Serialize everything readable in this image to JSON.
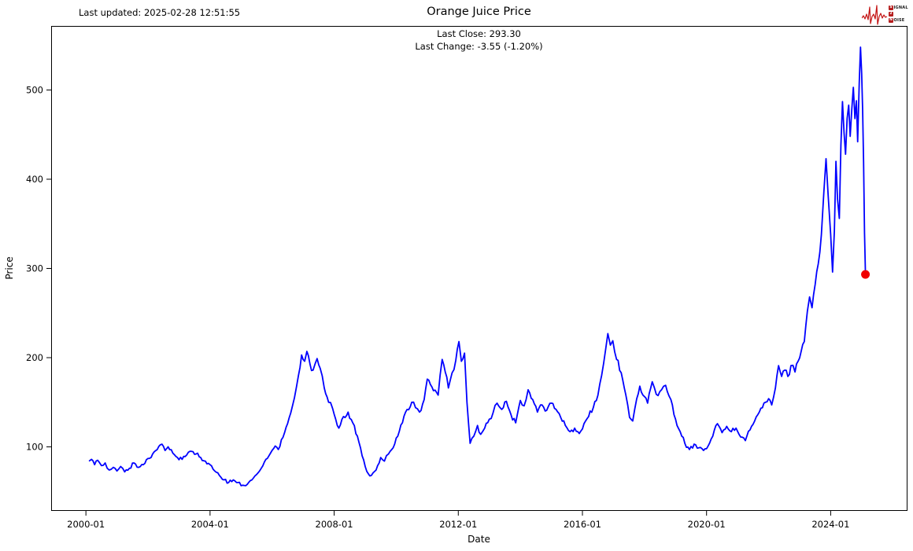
{
  "header": {
    "last_updated": "Last updated: 2025-02-28 12:51:55"
  },
  "logo": {
    "word1_badge": "S",
    "word1_rest": "IGNAL",
    "word2_badge": "2",
    "word3_badge": "N",
    "word3_rest": "OISE",
    "accent_color": "#c41414"
  },
  "chart_data": {
    "type": "line",
    "title": "Orange Juice Price",
    "annotations": [
      "Last Close: 293.30",
      "Last Change: -3.55 (-1.20%)"
    ],
    "last_close": 293.3,
    "last_change": "-3.55 (-1.20%)",
    "xlabel": "Date",
    "ylabel": "Price",
    "x_ticks": [
      {
        "label": "2000-01",
        "year": 2000.0
      },
      {
        "label": "2004-01",
        "year": 2004.0
      },
      {
        "label": "2008-01",
        "year": 2008.0
      },
      {
        "label": "2012-01",
        "year": 2012.0
      },
      {
        "label": "2016-01",
        "year": 2016.0
      },
      {
        "label": "2020-01",
        "year": 2020.0
      },
      {
        "label": "2024-01",
        "year": 2024.0
      }
    ],
    "y_ticks": [
      100,
      200,
      300,
      400,
      500
    ],
    "xlim": [
      1998.88,
      2026.45
    ],
    "ylim": [
      29.1,
      571.8
    ],
    "grid": false,
    "legend": "none",
    "line_color": "#0000ff",
    "marker_color": "#f00000",
    "series": [
      {
        "name": "Price",
        "points": [
          [
            2000.1,
            84
          ],
          [
            2000.18,
            86
          ],
          [
            2000.28,
            80
          ],
          [
            2000.38,
            85
          ],
          [
            2000.5,
            79
          ],
          [
            2000.62,
            82
          ],
          [
            2000.75,
            74
          ],
          [
            2000.88,
            77
          ],
          [
            2001.0,
            73
          ],
          [
            2001.12,
            78
          ],
          [
            2001.25,
            72
          ],
          [
            2001.4,
            76
          ],
          [
            2001.55,
            82
          ],
          [
            2001.7,
            77
          ],
          [
            2001.85,
            80
          ],
          [
            2002.0,
            87
          ],
          [
            2002.15,
            92
          ],
          [
            2002.3,
            97
          ],
          [
            2002.45,
            103
          ],
          [
            2002.55,
            96
          ],
          [
            2002.65,
            100
          ],
          [
            2002.8,
            93
          ],
          [
            2002.95,
            88
          ],
          [
            2003.1,
            86
          ],
          [
            2003.25,
            91
          ],
          [
            2003.4,
            95
          ],
          [
            2003.55,
            92
          ],
          [
            2003.7,
            88
          ],
          [
            2003.85,
            84
          ],
          [
            2004.0,
            80
          ],
          [
            2004.15,
            73
          ],
          [
            2004.3,
            68
          ],
          [
            2004.45,
            63
          ],
          [
            2004.6,
            60
          ],
          [
            2004.75,
            63
          ],
          [
            2004.9,
            60
          ],
          [
            2005.05,
            57
          ],
          [
            2005.2,
            58
          ],
          [
            2005.35,
            63
          ],
          [
            2005.5,
            69
          ],
          [
            2005.65,
            76
          ],
          [
            2005.8,
            86
          ],
          [
            2005.95,
            93
          ],
          [
            2006.1,
            101
          ],
          [
            2006.2,
            97
          ],
          [
            2006.3,
            108
          ],
          [
            2006.45,
            122
          ],
          [
            2006.6,
            138
          ],
          [
            2006.72,
            155
          ],
          [
            2006.85,
            180
          ],
          [
            2006.95,
            203
          ],
          [
            2007.05,
            196
          ],
          [
            2007.12,
            207
          ],
          [
            2007.22,
            193
          ],
          [
            2007.32,
            186
          ],
          [
            2007.45,
            199
          ],
          [
            2007.55,
            188
          ],
          [
            2007.68,
            166
          ],
          [
            2007.82,
            150
          ],
          [
            2007.95,
            143
          ],
          [
            2008.05,
            131
          ],
          [
            2008.15,
            121
          ],
          [
            2008.3,
            134
          ],
          [
            2008.45,
            139
          ],
          [
            2008.6,
            127
          ],
          [
            2008.75,
            112
          ],
          [
            2008.9,
            90
          ],
          [
            2009.0,
            78
          ],
          [
            2009.1,
            70
          ],
          [
            2009.2,
            68
          ],
          [
            2009.35,
            74
          ],
          [
            2009.5,
            88
          ],
          [
            2009.62,
            84
          ],
          [
            2009.75,
            92
          ],
          [
            2009.9,
            99
          ],
          [
            2010.05,
            112
          ],
          [
            2010.2,
            127
          ],
          [
            2010.35,
            142
          ],
          [
            2010.5,
            150
          ],
          [
            2010.62,
            144
          ],
          [
            2010.75,
            139
          ],
          [
            2010.9,
            153
          ],
          [
            2011.0,
            176
          ],
          [
            2011.1,
            170
          ],
          [
            2011.2,
            163
          ],
          [
            2011.35,
            158
          ],
          [
            2011.48,
            198
          ],
          [
            2011.58,
            184
          ],
          [
            2011.68,
            166
          ],
          [
            2011.8,
            183
          ],
          [
            2011.92,
            197
          ],
          [
            2012.02,
            218
          ],
          [
            2012.1,
            196
          ],
          [
            2012.2,
            205
          ],
          [
            2012.28,
            150
          ],
          [
            2012.38,
            104
          ],
          [
            2012.5,
            112
          ],
          [
            2012.62,
            124
          ],
          [
            2012.72,
            114
          ],
          [
            2012.85,
            121
          ],
          [
            2013.0,
            131
          ],
          [
            2013.12,
            138
          ],
          [
            2013.25,
            149
          ],
          [
            2013.4,
            142
          ],
          [
            2013.55,
            151
          ],
          [
            2013.7,
            136
          ],
          [
            2013.85,
            127
          ],
          [
            2014.0,
            152
          ],
          [
            2014.12,
            146
          ],
          [
            2014.25,
            164
          ],
          [
            2014.4,
            153
          ],
          [
            2014.55,
            139
          ],
          [
            2014.7,
            147
          ],
          [
            2014.85,
            141
          ],
          [
            2015.0,
            149
          ],
          [
            2015.15,
            142
          ],
          [
            2015.3,
            133
          ],
          [
            2015.45,
            124
          ],
          [
            2015.6,
            117
          ],
          [
            2015.75,
            121
          ],
          [
            2015.9,
            115
          ],
          [
            2016.05,
            126
          ],
          [
            2016.2,
            134
          ],
          [
            2016.35,
            144
          ],
          [
            2016.5,
            158
          ],
          [
            2016.62,
            180
          ],
          [
            2016.75,
            210
          ],
          [
            2016.82,
            227
          ],
          [
            2016.9,
            214
          ],
          [
            2016.98,
            219
          ],
          [
            2017.1,
            198
          ],
          [
            2017.25,
            183
          ],
          [
            2017.4,
            158
          ],
          [
            2017.52,
            133
          ],
          [
            2017.62,
            129
          ],
          [
            2017.75,
            154
          ],
          [
            2017.85,
            168
          ],
          [
            2017.95,
            158
          ],
          [
            2018.1,
            149
          ],
          [
            2018.25,
            173
          ],
          [
            2018.38,
            159
          ],
          [
            2018.55,
            164
          ],
          [
            2018.68,
            169
          ],
          [
            2018.85,
            153
          ],
          [
            2019.0,
            131
          ],
          [
            2019.15,
            117
          ],
          [
            2019.3,
            104
          ],
          [
            2019.45,
            97
          ],
          [
            2019.6,
            103
          ],
          [
            2019.75,
            99
          ],
          [
            2019.9,
            96
          ],
          [
            2020.05,
            101
          ],
          [
            2020.2,
            112
          ],
          [
            2020.35,
            126
          ],
          [
            2020.5,
            116
          ],
          [
            2020.65,
            123
          ],
          [
            2020.8,
            117
          ],
          [
            2020.95,
            121
          ],
          [
            2021.1,
            111
          ],
          [
            2021.25,
            107
          ],
          [
            2021.4,
            119
          ],
          [
            2021.55,
            129
          ],
          [
            2021.7,
            139
          ],
          [
            2021.85,
            149
          ],
          [
            2022.0,
            154
          ],
          [
            2022.1,
            147
          ],
          [
            2022.22,
            166
          ],
          [
            2022.32,
            191
          ],
          [
            2022.42,
            179
          ],
          [
            2022.52,
            186
          ],
          [
            2022.62,
            179
          ],
          [
            2022.72,
            191
          ],
          [
            2022.85,
            184
          ],
          [
            2022.95,
            196
          ],
          [
            2023.05,
            207
          ],
          [
            2023.15,
            218
          ],
          [
            2023.25,
            252
          ],
          [
            2023.32,
            268
          ],
          [
            2023.4,
            256
          ],
          [
            2023.5,
            282
          ],
          [
            2023.6,
            305
          ],
          [
            2023.7,
            338
          ],
          [
            2023.78,
            385
          ],
          [
            2023.85,
            423
          ],
          [
            2023.92,
            382
          ],
          [
            2024.0,
            338
          ],
          [
            2024.06,
            296
          ],
          [
            2024.12,
            342
          ],
          [
            2024.17,
            420
          ],
          [
            2024.22,
            378
          ],
          [
            2024.28,
            356
          ],
          [
            2024.33,
            438
          ],
          [
            2024.38,
            487
          ],
          [
            2024.43,
            452
          ],
          [
            2024.48,
            428
          ],
          [
            2024.53,
            468
          ],
          [
            2024.58,
            483
          ],
          [
            2024.63,
            448
          ],
          [
            2024.68,
            478
          ],
          [
            2024.73,
            503
          ],
          [
            2024.78,
            468
          ],
          [
            2024.83,
            488
          ],
          [
            2024.87,
            442
          ],
          [
            2024.92,
            508
          ],
          [
            2024.96,
            548
          ],
          [
            2025.0,
            518
          ],
          [
            2025.03,
            478
          ],
          [
            2025.06,
            420
          ],
          [
            2025.09,
            340
          ],
          [
            2025.12,
            293.3
          ]
        ]
      }
    ]
  }
}
